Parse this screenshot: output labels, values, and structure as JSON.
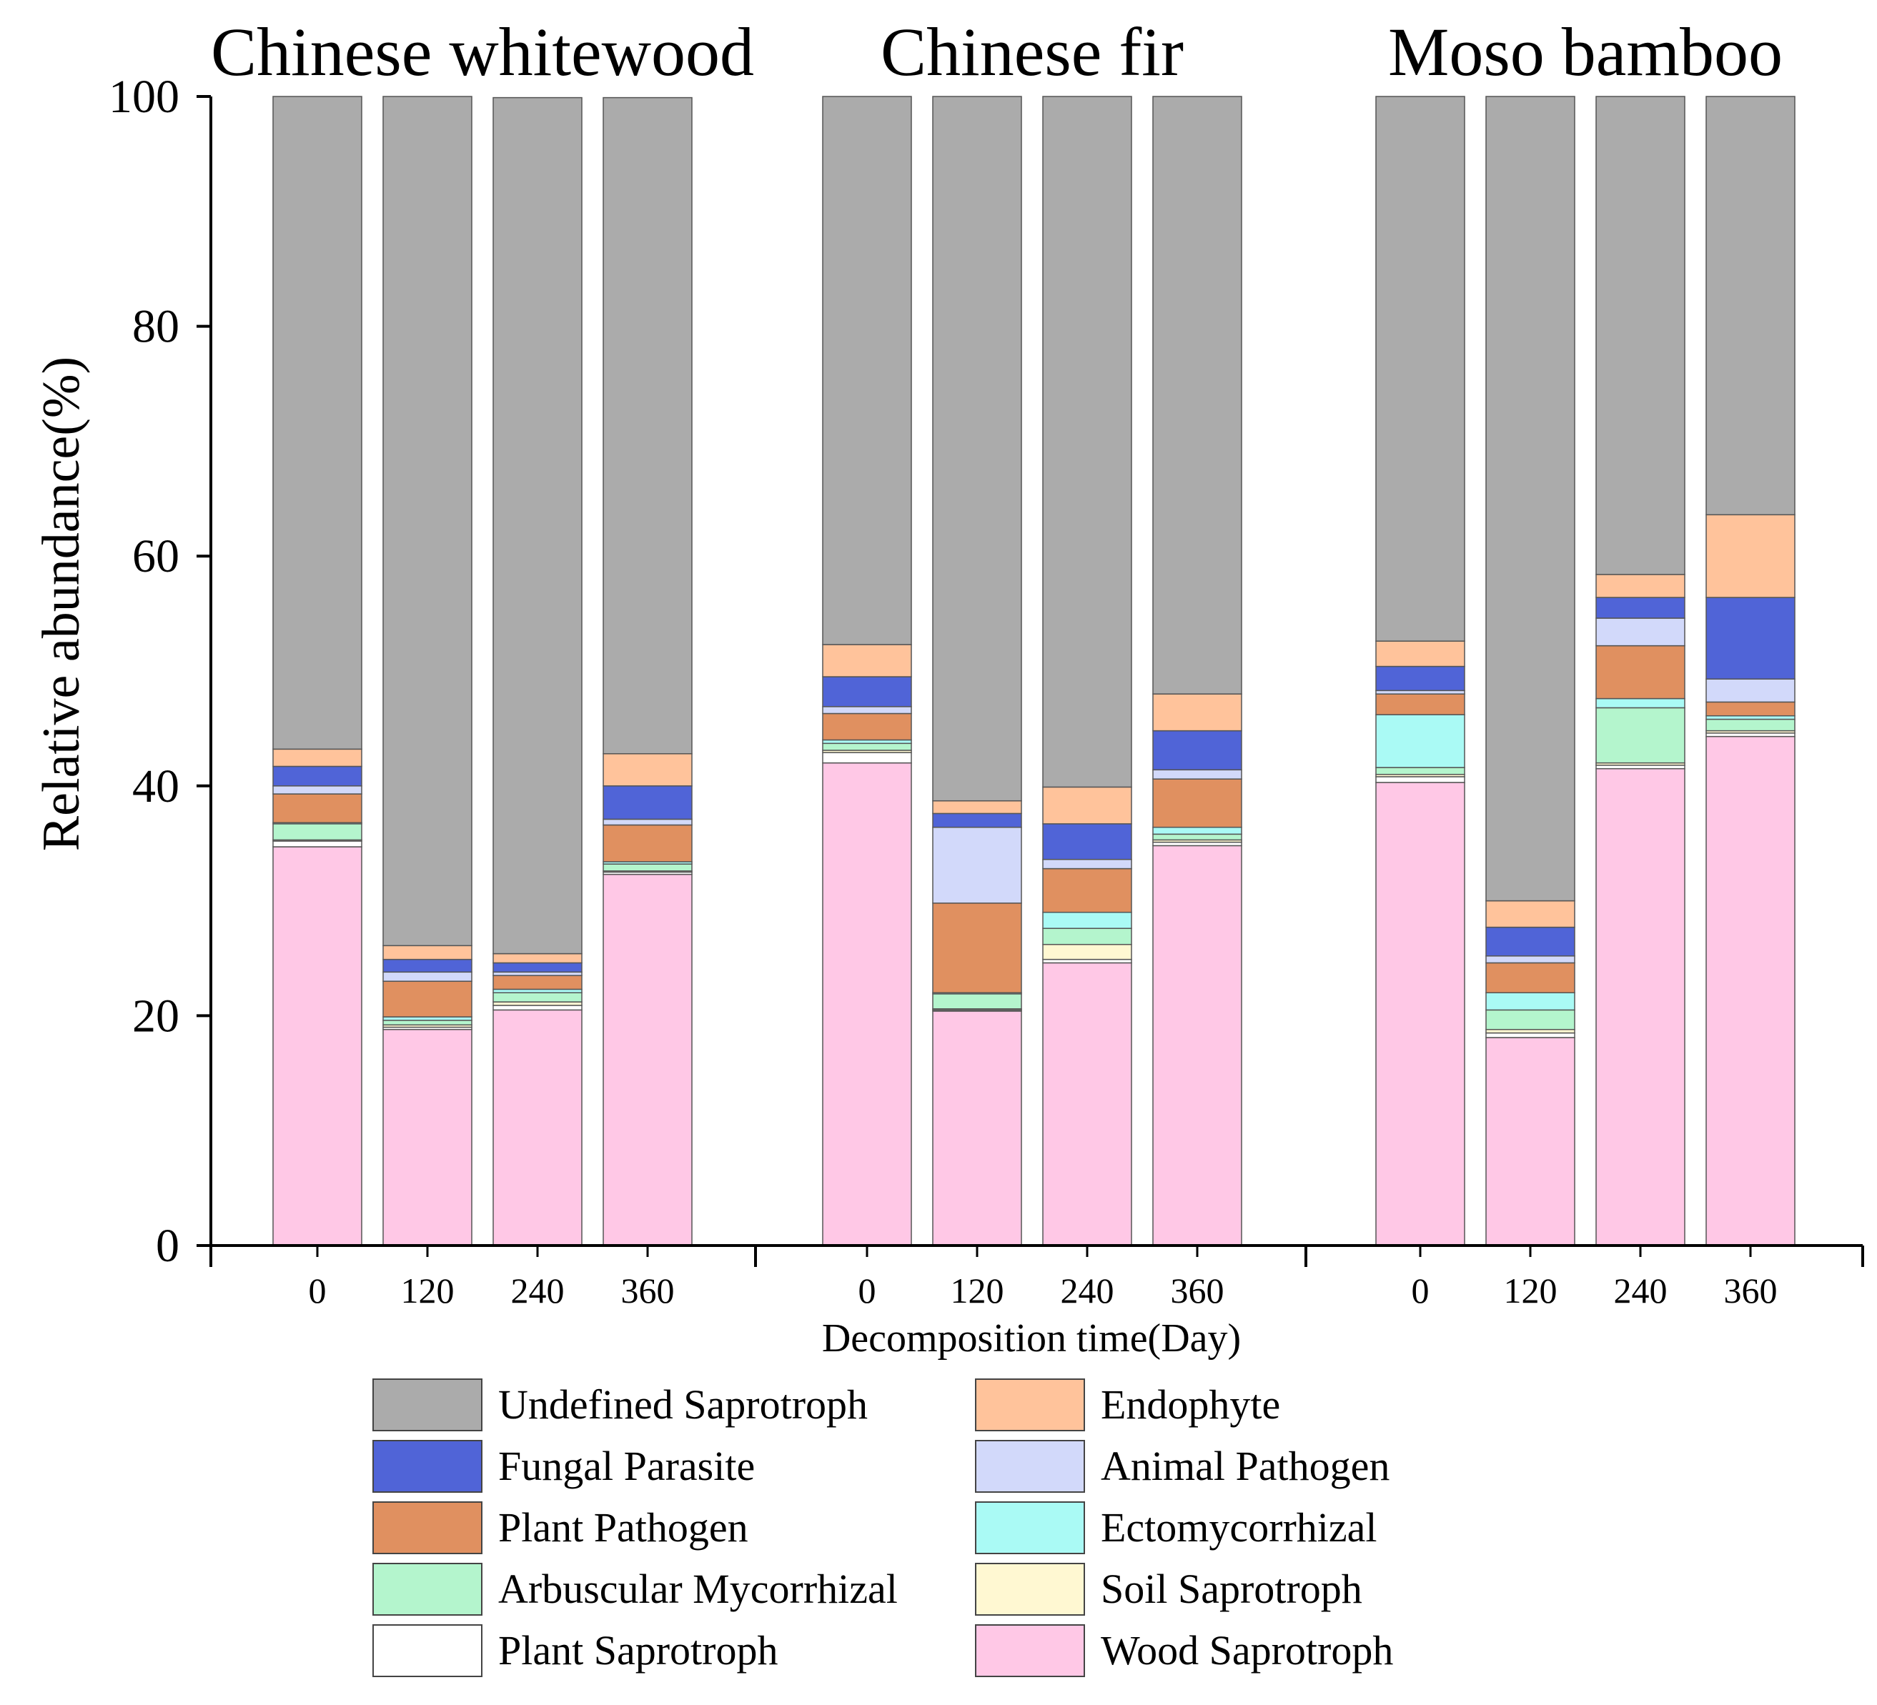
{
  "chart_data": {
    "type": "bar",
    "stacked": true,
    "ylabel": "Relative abundance(%)",
    "xlabel": "Decomposition time(Day)",
    "ylim": [
      0,
      100
    ],
    "yticks": [
      0,
      20,
      40,
      60,
      80,
      100
    ],
    "legend_position": "bottom",
    "groups": [
      {
        "title": "Chinese whitewood",
        "categories": [
          "0",
          "120",
          "240",
          "360"
        ]
      },
      {
        "title": "Chinese fir",
        "categories": [
          "0",
          "120",
          "240",
          "360"
        ]
      },
      {
        "title": "Moso bamboo",
        "categories": [
          "0",
          "120",
          "240",
          "360"
        ]
      }
    ],
    "series": [
      {
        "name": "Wood Saprotroph",
        "color": "#FFC8E6",
        "values": [
          34.7,
          18.8,
          20.5,
          32.3,
          42.0,
          20.4,
          24.6,
          34.8,
          40.3,
          18.1,
          41.5,
          44.3
        ]
      },
      {
        "name": "Plant Saprotroph",
        "color": "#FFFFFF",
        "values": [
          0.5,
          0.2,
          0.4,
          0.2,
          0.9,
          0.1,
          0.3,
          0.3,
          0.5,
          0.4,
          0.3,
          0.3
        ]
      },
      {
        "name": "Soil Saprotroph",
        "color": "#FFF8D2",
        "values": [
          0.1,
          0.2,
          0.3,
          0.1,
          0.2,
          0.1,
          1.3,
          0.2,
          0.2,
          0.3,
          0.2,
          0.2
        ]
      },
      {
        "name": "Arbuscular Mycorrhizal",
        "color": "#B4F5CD",
        "values": [
          1.4,
          0.4,
          0.8,
          0.6,
          0.6,
          1.3,
          1.4,
          0.5,
          0.6,
          1.7,
          4.8,
          1.0
        ]
      },
      {
        "name": "Ectomycorrhizal",
        "color": "#AAFAF5",
        "values": [
          0.1,
          0.3,
          0.3,
          0.2,
          0.3,
          0.1,
          1.4,
          0.6,
          4.6,
          1.5,
          0.8,
          0.3
        ]
      },
      {
        "name": "Plant Pathogen",
        "color": "#E09060",
        "values": [
          2.5,
          3.1,
          1.2,
          3.2,
          2.3,
          7.8,
          3.8,
          4.2,
          1.8,
          2.6,
          4.6,
          1.2
        ]
      },
      {
        "name": "Animal Pathogen",
        "color": "#D2D9FA",
        "values": [
          0.7,
          0.8,
          0.3,
          0.5,
          0.6,
          6.6,
          0.8,
          0.8,
          0.3,
          0.6,
          2.4,
          2.0
        ]
      },
      {
        "name": "Fungal Parasite",
        "color": "#5064D7",
        "values": [
          1.7,
          1.1,
          0.8,
          2.9,
          2.6,
          1.2,
          3.1,
          3.4,
          2.1,
          2.5,
          1.8,
          7.1
        ]
      },
      {
        "name": "Endophyte",
        "color": "#FFC39B",
        "values": [
          1.5,
          1.2,
          0.8,
          2.8,
          2.8,
          1.1,
          3.2,
          3.2,
          2.2,
          2.3,
          2.0,
          7.2
        ]
      },
      {
        "name": "Undefined Saprotroph",
        "color": "#ABABAB",
        "values": [
          56.8,
          73.9,
          74.5,
          57.1,
          47.7,
          61.3,
          60.1,
          52.0,
          47.4,
          70.0,
          41.6,
          36.4
        ]
      }
    ],
    "legend_order": [
      "Undefined Saprotroph",
      "Endophyte",
      "Fungal Parasite",
      "Animal Pathogen",
      "Plant Pathogen",
      "Ectomycorrhizal",
      "Arbuscular Mycorrhizal",
      "Soil Saprotroph",
      "Plant Saprotroph",
      "Wood Saprotroph"
    ]
  }
}
